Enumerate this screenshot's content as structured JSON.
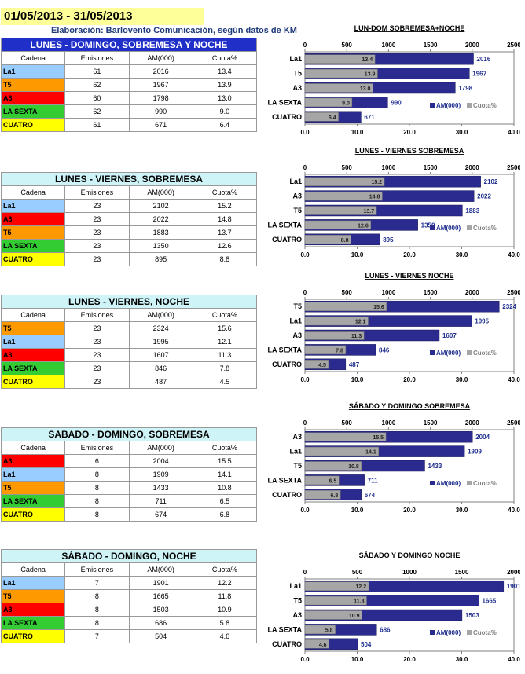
{
  "header": {
    "date_range": "01/05/2013 - 31/05/2013",
    "credit": "Elaboración: Barlovento Comunicación, según datos de KM"
  },
  "colors": {
    "La1": "#99ccff",
    "T5": "#ff9900",
    "A3": "#ff0000",
    "LA SEXTA": "#33cc33",
    "CUATRO": "#ffff00",
    "am_bar": "#2b2b8f",
    "cuota_bar": "#a6a6a6"
  },
  "columns": [
    "Cadena",
    "Emisiones",
    "AM(000)",
    "Cuota%"
  ],
  "legend": {
    "am": "AM(000)",
    "cuota": "Cuota%"
  },
  "tables": [
    {
      "title": "LUNES - DOMINGO, SOBREMESA Y NOCHE",
      "rows": [
        {
          "cadena": "La1",
          "emisiones": "61",
          "am": "2016",
          "cuota": "13.4"
        },
        {
          "cadena": "T5",
          "emisiones": "62",
          "am": "1967",
          "cuota": "13.9"
        },
        {
          "cadena": "A3",
          "emisiones": "60",
          "am": "1798",
          "cuota": "13.0"
        },
        {
          "cadena": "LA SEXTA",
          "emisiones": "62",
          "am": "990",
          "cuota": "9.0"
        },
        {
          "cadena": "CUATRO",
          "emisiones": "61",
          "am": "671",
          "cuota": "6.4"
        }
      ]
    },
    {
      "title": "LUNES - VIERNES, SOBREMESA",
      "rows": [
        {
          "cadena": "La1",
          "emisiones": "23",
          "am": "2102",
          "cuota": "15.2"
        },
        {
          "cadena": "A3",
          "emisiones": "23",
          "am": "2022",
          "cuota": "14.8"
        },
        {
          "cadena": "T5",
          "emisiones": "23",
          "am": "1883",
          "cuota": "13.7"
        },
        {
          "cadena": "LA SEXTA",
          "emisiones": "23",
          "am": "1350",
          "cuota": "12.6"
        },
        {
          "cadena": "CUATRO",
          "emisiones": "23",
          "am": "895",
          "cuota": "8.8"
        }
      ]
    },
    {
      "title": "LUNES - VIERNES, NOCHE",
      "rows": [
        {
          "cadena": "T5",
          "emisiones": "23",
          "am": "2324",
          "cuota": "15.6"
        },
        {
          "cadena": "La1",
          "emisiones": "23",
          "am": "1995",
          "cuota": "12.1"
        },
        {
          "cadena": "A3",
          "emisiones": "23",
          "am": "1607",
          "cuota": "11.3"
        },
        {
          "cadena": "LA SEXTA",
          "emisiones": "23",
          "am": "846",
          "cuota": "7.8"
        },
        {
          "cadena": "CUATRO",
          "emisiones": "23",
          "am": "487",
          "cuota": "4.5"
        }
      ]
    },
    {
      "title": "SABADO - DOMINGO, SOBREMESA",
      "rows": [
        {
          "cadena": "A3",
          "emisiones": "6",
          "am": "2004",
          "cuota": "15.5"
        },
        {
          "cadena": "La1",
          "emisiones": "8",
          "am": "1909",
          "cuota": "14.1"
        },
        {
          "cadena": "T5",
          "emisiones": "8",
          "am": "1433",
          "cuota": "10.8"
        },
        {
          "cadena": "LA SEXTA",
          "emisiones": "8",
          "am": "711",
          "cuota": "6.5"
        },
        {
          "cadena": "CUATRO",
          "emisiones": "8",
          "am": "674",
          "cuota": "6.8"
        }
      ]
    },
    {
      "title": "SÁBADO - DOMINGO, NOCHE",
      "rows": [
        {
          "cadena": "La1",
          "emisiones": "7",
          "am": "1901",
          "cuota": "12.2"
        },
        {
          "cadena": "T5",
          "emisiones": "8",
          "am": "1665",
          "cuota": "11.8"
        },
        {
          "cadena": "A3",
          "emisiones": "8",
          "am": "1503",
          "cuota": "10.9"
        },
        {
          "cadena": "LA SEXTA",
          "emisiones": "8",
          "am": "686",
          "cuota": "5.8"
        },
        {
          "cadena": "CUATRO",
          "emisiones": "7",
          "am": "504",
          "cuota": "4.6"
        }
      ]
    }
  ],
  "chart_data": [
    {
      "type": "bar",
      "orientation": "horizontal",
      "title": "LUN-DOM SOBREMESA+NOCHE",
      "categories": [
        "La1",
        "T5",
        "A3",
        "LA SEXTA",
        "CUATRO"
      ],
      "series": [
        {
          "name": "AM(000)",
          "axis": "top",
          "values": [
            2016,
            1967,
            1798,
            990,
            671
          ]
        },
        {
          "name": "Cuota%",
          "axis": "bottom",
          "values": [
            13.4,
            13.9,
            13.0,
            9.0,
            6.4
          ]
        }
      ],
      "top_axis": {
        "range": [
          0,
          2500
        ],
        "ticks": [
          "0",
          "500",
          "1000",
          "1500",
          "2000",
          "2500"
        ]
      },
      "bottom_axis": {
        "range": [
          0,
          40
        ],
        "ticks": [
          "0.0",
          "10.0",
          "20.0",
          "30.0",
          "40.0"
        ]
      },
      "legend_position": "bottom-right"
    },
    {
      "type": "bar",
      "orientation": "horizontal",
      "title": "LUNES - VIERNES SOBREMESA",
      "categories": [
        "La1",
        "A3",
        "T5",
        "LA SEXTA",
        "CUATRO"
      ],
      "series": [
        {
          "name": "AM(000)",
          "axis": "top",
          "values": [
            2102,
            2022,
            1883,
            1350,
            895
          ]
        },
        {
          "name": "Cuota%",
          "axis": "bottom",
          "values": [
            15.2,
            14.8,
            13.7,
            12.6,
            8.8
          ]
        }
      ],
      "top_axis": {
        "range": [
          0,
          2500
        ],
        "ticks": [
          "0",
          "500",
          "1000",
          "1500",
          "2000",
          "2500"
        ]
      },
      "bottom_axis": {
        "range": [
          0,
          40
        ],
        "ticks": [
          "0.0",
          "10.0",
          "20.0",
          "30.0",
          "40.0"
        ]
      },
      "legend_position": "bottom-right"
    },
    {
      "type": "bar",
      "orientation": "horizontal",
      "title": "LUNES - VIERNES NOCHE",
      "categories": [
        "T5",
        "La1",
        "A3",
        "LA SEXTA",
        "CUATRO"
      ],
      "series": [
        {
          "name": "AM(000)",
          "axis": "top",
          "values": [
            2324,
            1995,
            1607,
            846,
            487
          ]
        },
        {
          "name": "Cuota%",
          "axis": "bottom",
          "values": [
            15.6,
            12.1,
            11.3,
            7.8,
            4.5
          ]
        }
      ],
      "top_axis": {
        "range": [
          0,
          2500
        ],
        "ticks": [
          "0",
          "500",
          "1000",
          "1500",
          "2000",
          "2500"
        ]
      },
      "bottom_axis": {
        "range": [
          0,
          40
        ],
        "ticks": [
          "0.0",
          "10.0",
          "20.0",
          "30.0",
          "40.0"
        ]
      },
      "legend_position": "bottom-right"
    },
    {
      "type": "bar",
      "orientation": "horizontal",
      "title": "SÁBADO Y DOMINGO SOBREMESA",
      "categories": [
        "A3",
        "La1",
        "T5",
        "LA SEXTA",
        "CUATRO"
      ],
      "series": [
        {
          "name": "AM(000)",
          "axis": "top",
          "values": [
            2004,
            1909,
            1433,
            711,
            674
          ]
        },
        {
          "name": "Cuota%",
          "axis": "bottom",
          "values": [
            15.5,
            14.1,
            10.8,
            6.5,
            6.8
          ]
        }
      ],
      "top_axis": {
        "range": [
          0,
          2500
        ],
        "ticks": [
          "0",
          "500",
          "1000",
          "1500",
          "2000",
          "2500"
        ]
      },
      "bottom_axis": {
        "range": [
          0,
          40
        ],
        "ticks": [
          "0.0",
          "10.0",
          "20.0",
          "30.0",
          "40.0"
        ]
      },
      "legend_position": "bottom-right"
    },
    {
      "type": "bar",
      "orientation": "horizontal",
      "title": "SÁBADO Y DOMINGO NOCHE",
      "categories": [
        "La1",
        "T5",
        "A3",
        "LA SEXTA",
        "CUATRO"
      ],
      "series": [
        {
          "name": "AM(000)",
          "axis": "top",
          "values": [
            1901,
            1665,
            1503,
            686,
            504
          ]
        },
        {
          "name": "Cuota%",
          "axis": "bottom",
          "values": [
            12.2,
            11.8,
            10.9,
            5.8,
            4.6
          ]
        }
      ],
      "top_axis": {
        "range": [
          0,
          2000
        ],
        "ticks": [
          "0",
          "500",
          "1000",
          "1500",
          "2000"
        ]
      },
      "bottom_axis": {
        "range": [
          0,
          40
        ],
        "ticks": [
          "0.0",
          "10.0",
          "20.0",
          "30.0",
          "40.0"
        ]
      },
      "legend_position": "bottom-right"
    }
  ]
}
